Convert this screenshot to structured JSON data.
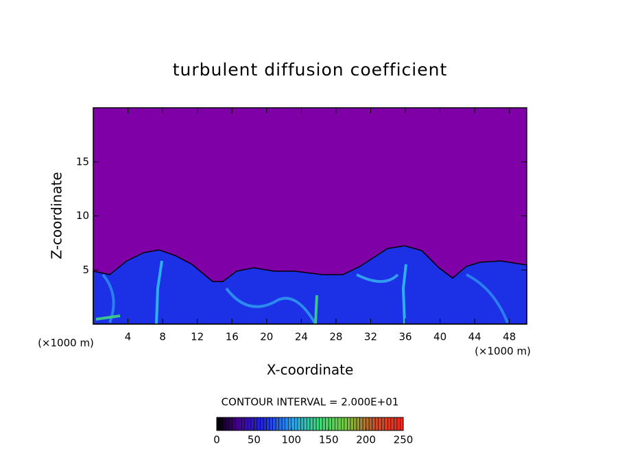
{
  "chart_data": {
    "type": "contour",
    "title": "turbulent diffusion coefficient",
    "x_label": "X-coordinate",
    "y_label": "Z-coordinate",
    "x_unit_labels": [
      "(×1000 m)",
      "(×1000 m)"
    ],
    "xlim": [
      0,
      50
    ],
    "xticks": [
      4,
      8,
      12,
      16,
      20,
      24,
      28,
      32,
      36,
      40,
      44,
      48
    ],
    "ylim": [
      0,
      20
    ],
    "yticks": [
      5,
      10,
      15
    ],
    "colorbar": {
      "title": "CONTOUR INTERVAL = 2.000E+01",
      "lim": [
        0,
        250
      ],
      "ticks": [
        0,
        50,
        100,
        150,
        200,
        250
      ]
    }
  }
}
